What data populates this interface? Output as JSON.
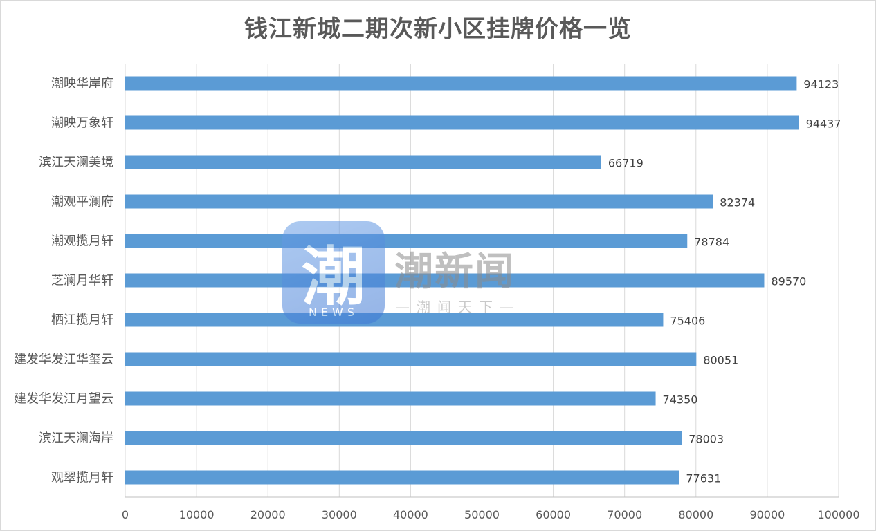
{
  "chart_data": {
    "type": "bar",
    "orientation": "horizontal",
    "title": "钱江新城二期次新小区挂牌价格一览",
    "categories": [
      "潮映华岸府",
      "潮映万象轩",
      "滨江天澜美境",
      "潮观平澜府",
      "潮观揽月轩",
      "芝澜月华轩",
      "栖江揽月轩",
      "建发华发江华玺云",
      "建发华发江月望云",
      "滨江天澜海岸",
      "观翠揽月轩"
    ],
    "values": [
      94123,
      94437,
      66719,
      82374,
      78784,
      89570,
      75406,
      80051,
      74350,
      78003,
      77631
    ],
    "xlim": [
      0,
      100000
    ],
    "xticks": [
      0,
      10000,
      20000,
      30000,
      40000,
      50000,
      60000,
      70000,
      80000,
      90000,
      100000
    ],
    "xlabel": "",
    "ylabel": "",
    "grid": "vertical",
    "legend": "none",
    "data_labels": true,
    "bar_color": "#5b9bd5"
  },
  "watermark": {
    "logo_glyph": "潮",
    "logo_sub": "NEWS",
    "brand": "潮新闻",
    "slogan": "—潮闻天下—"
  }
}
